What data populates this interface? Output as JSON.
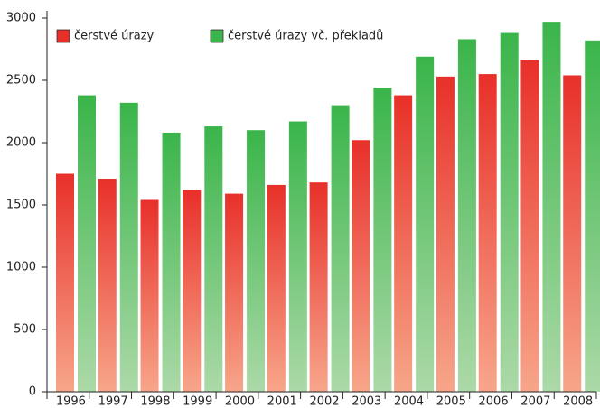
{
  "chart_data": {
    "type": "bar",
    "categories": [
      "1996",
      "1997",
      "1998",
      "1999",
      "2000",
      "2001",
      "2002",
      "2003",
      "2004",
      "2005",
      "2006",
      "2007",
      "2008"
    ],
    "series": [
      {
        "name": "čerstvé úrazy",
        "color": "#e8302a",
        "values": [
          1750,
          1710,
          1540,
          1620,
          1590,
          1660,
          1680,
          2020,
          2380,
          2530,
          2550,
          2660,
          2540
        ]
      },
      {
        "name": "čerstvé úrazy vč. překladů",
        "color": "#3ab54a",
        "values": [
          2380,
          2320,
          2080,
          2130,
          2100,
          2170,
          2300,
          2440,
          2690,
          2830,
          2880,
          2970,
          2820
        ]
      }
    ],
    "ylim": [
      0,
      3000
    ],
    "yticks": [
      0,
      500,
      1000,
      1500,
      2000,
      2500,
      3000
    ],
    "legend": "top-left"
  }
}
